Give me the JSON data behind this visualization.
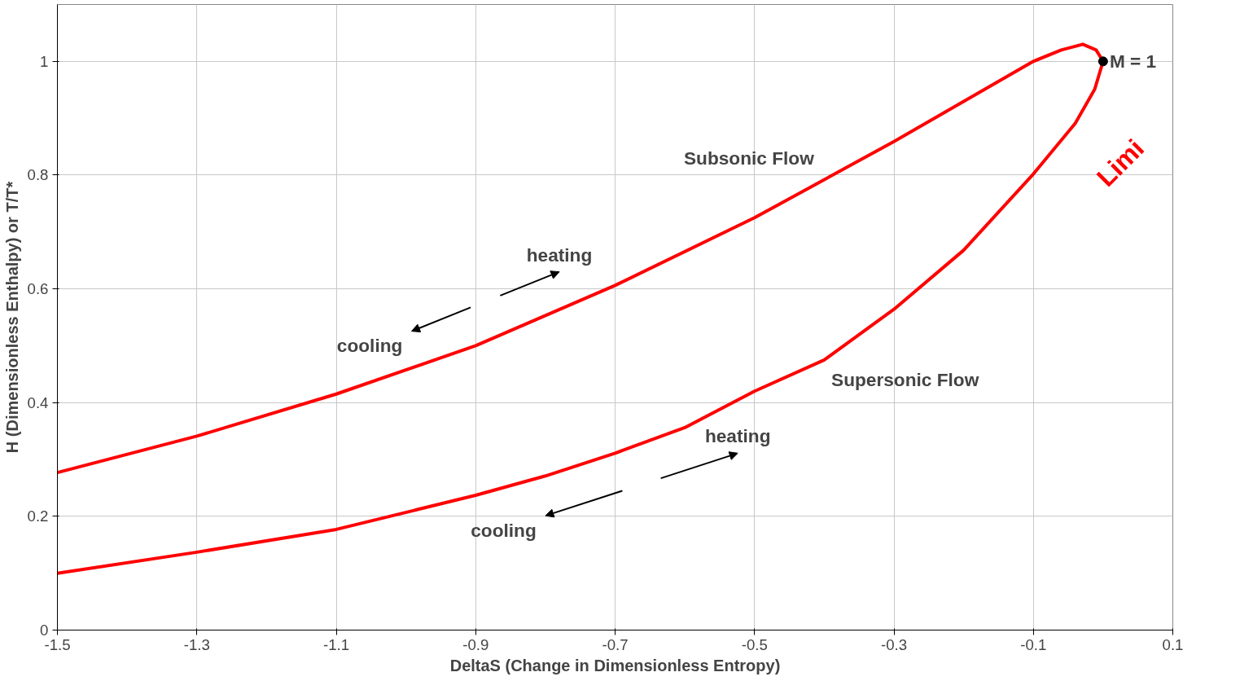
{
  "chart_data": {
    "type": "line",
    "xlabel": "DeltaS (Change in Dimensionless Entropy)",
    "ylabel": "H (Dimensionless Enthalpy) or T/T*",
    "xlim": [
      -1.5,
      0.1
    ],
    "ylim": [
      0,
      1.1
    ],
    "xticks": [
      -1.5,
      -1.3,
      -1.1,
      -0.9,
      -0.7,
      -0.5,
      -0.3,
      -0.1,
      0.1
    ],
    "yticks": [
      0,
      0.2,
      0.4,
      0.6,
      0.8,
      1
    ],
    "grid": true,
    "series": [
      {
        "color": "#ff0000",
        "x": [
          -1.5,
          -1.3,
          -1.1,
          -0.9,
          -0.7,
          -0.5,
          -0.3,
          -0.1,
          -0.06,
          -0.029,
          -0.01,
          0,
          -0.012,
          -0.04,
          -0.1,
          -0.2,
          -0.3,
          -0.4,
          -0.5,
          -0.6,
          -0.7,
          -0.8,
          -0.9,
          -1.1,
          -1.3,
          -1.5
        ],
        "values": [
          0.277,
          0.341,
          0.415,
          0.5,
          0.606,
          0.725,
          0.859,
          1.0,
          1.02,
          1.03,
          1.02,
          1.0,
          0.951,
          0.891,
          0.802,
          0.668,
          0.564,
          0.475,
          0.42,
          0.356,
          0.311,
          0.271,
          0.237,
          0.177,
          0.137,
          0.1
        ]
      },
      {
        "type": "scatter",
        "color": "#000000",
        "marker": "circle",
        "x": [
          0
        ],
        "values": [
          1
        ]
      }
    ],
    "annotations": [
      {
        "text": "M = 1",
        "x": 0,
        "y": 1
      },
      "Subsonic Flow",
      "Supersonic Flow",
      "heating",
      "cooling",
      "heating",
      "cooling",
      "Limi"
    ]
  }
}
